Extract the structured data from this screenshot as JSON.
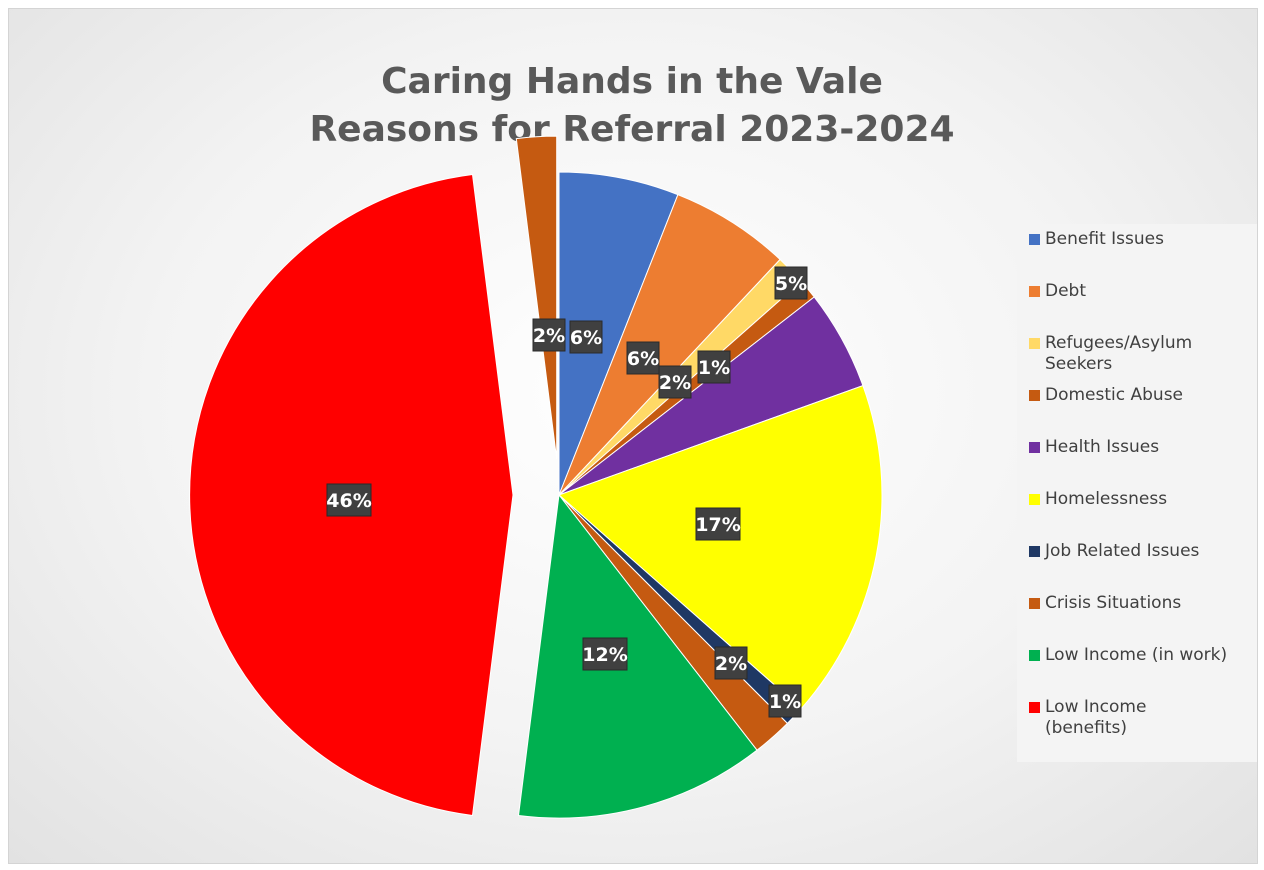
{
  "chart_data": {
    "type": "pie",
    "title_lines": [
      "Caring Hands in the Vale",
      "Reasons for Referral 2023-2024"
    ],
    "legend_position": "right",
    "slices": [
      {
        "name": "Benefit Issues",
        "value": 6,
        "label": "6%",
        "color": "#4472C4"
      },
      {
        "name": "Debt",
        "value": 6,
        "label": "6%",
        "color": "#ED7D31"
      },
      {
        "name": "Refugees/Asylum Seekers",
        "value": 1.5,
        "label": "2%",
        "color": "#FFD966"
      },
      {
        "name": "Domestic Abuse",
        "value": 1,
        "label": "1%",
        "color": "#C55A11"
      },
      {
        "name": "Health Issues",
        "value": 5,
        "label": "5%",
        "color": "#7030A0"
      },
      {
        "name": "Homelessness",
        "value": 17,
        "label": "17%",
        "color": "#FFFF00"
      },
      {
        "name": "Job Related Issues",
        "value": 1,
        "label": "1%",
        "color": "#1F3864"
      },
      {
        "name": "Crisis Situations",
        "value": 2,
        "label": "2%",
        "color": "#C55A11"
      },
      {
        "name": "Low Income (in work)",
        "value": 12.5,
        "label": "12%",
        "color": "#00B050"
      },
      {
        "name": "Low Income (benefits)",
        "value": 46,
        "label": "46%",
        "color": "#FF0000"
      },
      {
        "name": "",
        "value": 2,
        "label": "2%",
        "color": "#C55A11"
      }
    ],
    "legend": [
      {
        "lines": [
          "Benefit Issues"
        ],
        "color": "#4472C4"
      },
      {
        "lines": [
          "Debt"
        ],
        "color": "#ED7D31"
      },
      {
        "lines": [
          "Refugees/Asylum",
          "Seekers"
        ],
        "color": "#FFD966"
      },
      {
        "lines": [
          "Domestic Abuse"
        ],
        "color": "#C55A11"
      },
      {
        "lines": [
          "Health Issues"
        ],
        "color": "#7030A0"
      },
      {
        "lines": [
          "Homelessness"
        ],
        "color": "#FFFF00"
      },
      {
        "lines": [
          "Job Related Issues"
        ],
        "color": "#1F3864"
      },
      {
        "lines": [
          "Crisis Situations"
        ],
        "color": "#C55A11"
      },
      {
        "lines": [
          "Low Income (in work)"
        ],
        "color": "#00B050"
      },
      {
        "lines": [
          "Low Income",
          "(benefits)"
        ],
        "color": "#FF0000"
      }
    ]
  }
}
